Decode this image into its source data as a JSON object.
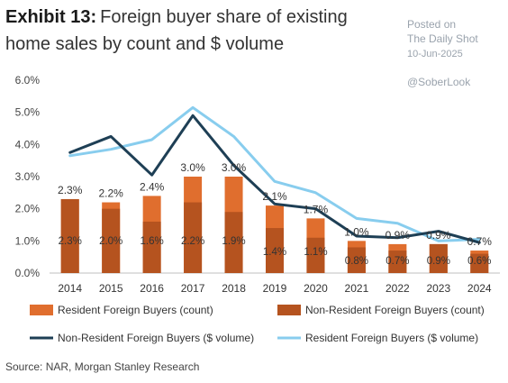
{
  "header": {
    "exhibit": "Exhibit 13:",
    "title": "Foreign buyer share of existing home sales by count and $ volume"
  },
  "watermark": {
    "line1": "Posted on",
    "line2": "The Daily Shot",
    "line3": "10-Jun-2025",
    "line4": "@SoberLook"
  },
  "source": "Source: NAR, Morgan Stanley Research",
  "colors": {
    "resident_count": "#e06e2e",
    "nonresident_count": "#b5531f",
    "nonresident_volume": "#1e3f55",
    "resident_volume": "#88cdee"
  },
  "chart_data": {
    "type": "bar",
    "categories": [
      "2014",
      "2015",
      "2016",
      "2017",
      "2018",
      "2019",
      "2020",
      "2021",
      "2022",
      "2023",
      "2024"
    ],
    "ylim": [
      0,
      6
    ],
    "yticks": [
      "0.0%",
      "1.0%",
      "2.0%",
      "3.0%",
      "4.0%",
      "5.0%",
      "6.0%"
    ],
    "grid": false,
    "legend_position": "bottom",
    "stacked_total_labels": [
      "2.3%",
      "2.2%",
      "2.4%",
      "3.0%",
      "3.0%",
      "2.1%",
      "1.7%",
      "1.0%",
      "0.9%",
      "0.9%",
      "0.7%"
    ],
    "series": [
      {
        "name": "Resident Foreign Buyers (count)",
        "kind": "bar",
        "values": [
          2.3,
          2.2,
          2.4,
          3.0,
          3.0,
          2.1,
          1.7,
          1.0,
          0.9,
          0.9,
          0.7
        ]
      },
      {
        "name": "Non-Resident Foreign Buyers (count)",
        "kind": "bar",
        "values": [
          2.3,
          2.0,
          1.6,
          2.2,
          1.9,
          1.4,
          1.1,
          0.8,
          0.7,
          0.9,
          0.6
        ],
        "labels": [
          "2.3%",
          "2.0%",
          "1.6%",
          "2.2%",
          "1.9%",
          "1.4%",
          "1.1%",
          "0.8%",
          "0.7%",
          "0.9%",
          "0.6%"
        ]
      },
      {
        "name": "Non-Resident Foreign Buyers ($ volume)",
        "kind": "line",
        "values": [
          3.75,
          4.25,
          3.05,
          4.9,
          3.35,
          2.15,
          2.0,
          1.15,
          1.1,
          1.3,
          0.95
        ]
      },
      {
        "name": "Resident Foreign Buyers ($ volume)",
        "kind": "line",
        "values": [
          3.65,
          3.85,
          4.15,
          5.15,
          4.25,
          2.85,
          2.5,
          1.7,
          1.55,
          1.0,
          1.05
        ]
      }
    ]
  }
}
